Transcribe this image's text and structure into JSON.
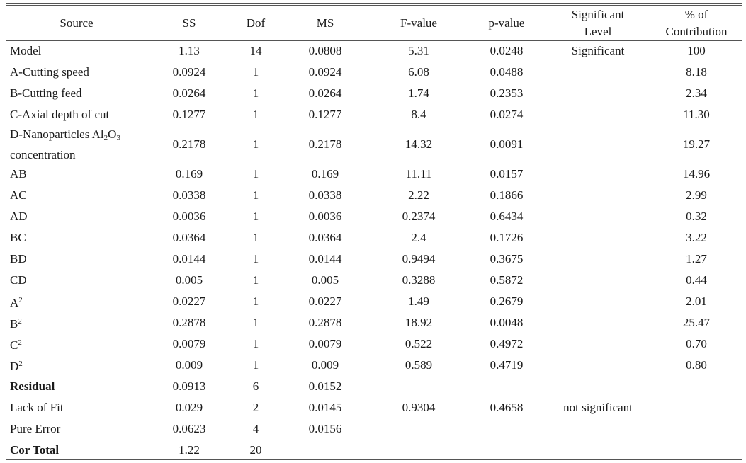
{
  "table": {
    "headers": {
      "source": "Source",
      "ss": "SS",
      "dof": "Dof",
      "ms": "MS",
      "f": "F-value",
      "p": "p-value",
      "sig_line1": "Significant",
      "sig_line2": "Level",
      "contrib_line1": "% of",
      "contrib_line2": "Contribution"
    },
    "rows": [
      {
        "source": "Model",
        "ss": "1.13",
        "dof": "14",
        "ms": "0.0808",
        "f": "5.31",
        "p": "0.0248",
        "sig": "Significant",
        "contrib": "100"
      },
      {
        "source": "A-Cutting speed",
        "ss": "0.0924",
        "dof": "1",
        "ms": "0.0924",
        "f": "6.08",
        "p": "0.0488",
        "sig": "",
        "contrib": "8.18"
      },
      {
        "source": "B-Cutting feed",
        "ss": "0.0264",
        "dof": "1",
        "ms": "0.0264",
        "f": "1.74",
        "p": "0.2353",
        "sig": "",
        "contrib": "2.34"
      },
      {
        "source": "C-Axial depth of cut",
        "ss": "0.1277",
        "dof": "1",
        "ms": "0.1277",
        "f": "8.4",
        "p": "0.0274",
        "sig": "",
        "contrib": "11.30"
      },
      {
        "source_a": "D-Nanoparticles Al",
        "source_sub1": "2",
        "source_b": "O",
        "source_sub2": "3",
        "source_c": "concentration",
        "ss": "0.2178",
        "dof": "1",
        "ms": "0.2178",
        "f": "14.32",
        "p": "0.0091",
        "sig": "",
        "contrib": "19.27"
      },
      {
        "source": "AB",
        "ss": "0.169",
        "dof": "1",
        "ms": "0.169",
        "f": "11.11",
        "p": "0.0157",
        "sig": "",
        "contrib": "14.96"
      },
      {
        "source": "AC",
        "ss": "0.0338",
        "dof": "1",
        "ms": "0.0338",
        "f": "2.22",
        "p": "0.1866",
        "sig": "",
        "contrib": "2.99"
      },
      {
        "source": "AD",
        "ss": "0.0036",
        "dof": "1",
        "ms": "0.0036",
        "f": "0.2374",
        "p": "0.6434",
        "sig": "",
        "contrib": "0.32"
      },
      {
        "source": "BC",
        "ss": "0.0364",
        "dof": "1",
        "ms": "0.0364",
        "f": "2.4",
        "p": "0.1726",
        "sig": "",
        "contrib": "3.22"
      },
      {
        "source": "BD",
        "ss": "0.0144",
        "dof": "1",
        "ms": "0.0144",
        "f": "0.9494",
        "p": "0.3675",
        "sig": "",
        "contrib": "1.27"
      },
      {
        "source": "CD",
        "ss": "0.005",
        "dof": "1",
        "ms": "0.005",
        "f": "0.3288",
        "p": "0.5872",
        "sig": "",
        "contrib": "0.44"
      },
      {
        "source": "A",
        "sup": "2",
        "ss": "0.0227",
        "dof": "1",
        "ms": "0.0227",
        "f": "1.49",
        "p": "0.2679",
        "sig": "",
        "contrib": "2.01"
      },
      {
        "source": "B",
        "sup": "2",
        "ss": "0.2878",
        "dof": "1",
        "ms": "0.2878",
        "f": "18.92",
        "p": "0.0048",
        "sig": "",
        "contrib": "25.47"
      },
      {
        "source": "C",
        "sup": "2",
        "ss": "0.0079",
        "dof": "1",
        "ms": "0.0079",
        "f": "0.522",
        "p": "0.4972",
        "sig": "",
        "contrib": "0.70"
      },
      {
        "source": "D",
        "sup": "2",
        "ss": "0.009",
        "dof": "1",
        "ms": "0.009",
        "f": "0.589",
        "p": "0.4719",
        "sig": "",
        "contrib": "0.80"
      },
      {
        "source": "Residual",
        "ss": "0.0913",
        "dof": "6",
        "ms": "0.0152",
        "f": "",
        "p": "",
        "sig": "",
        "contrib": ""
      },
      {
        "source": "Lack of Fit",
        "ss": "0.029",
        "dof": "2",
        "ms": "0.0145",
        "f": "0.9304",
        "p": "0.4658",
        "sig": "not significant",
        "contrib": ""
      },
      {
        "source": "Pure Error",
        "ss": "0.0623",
        "dof": "4",
        "ms": "0.0156",
        "f": "",
        "p": "",
        "sig": "",
        "contrib": ""
      },
      {
        "source": "Cor Total",
        "ss": "1.22",
        "dof": "20",
        "ms": "",
        "f": "",
        "p": "",
        "sig": "",
        "contrib": ""
      }
    ]
  }
}
